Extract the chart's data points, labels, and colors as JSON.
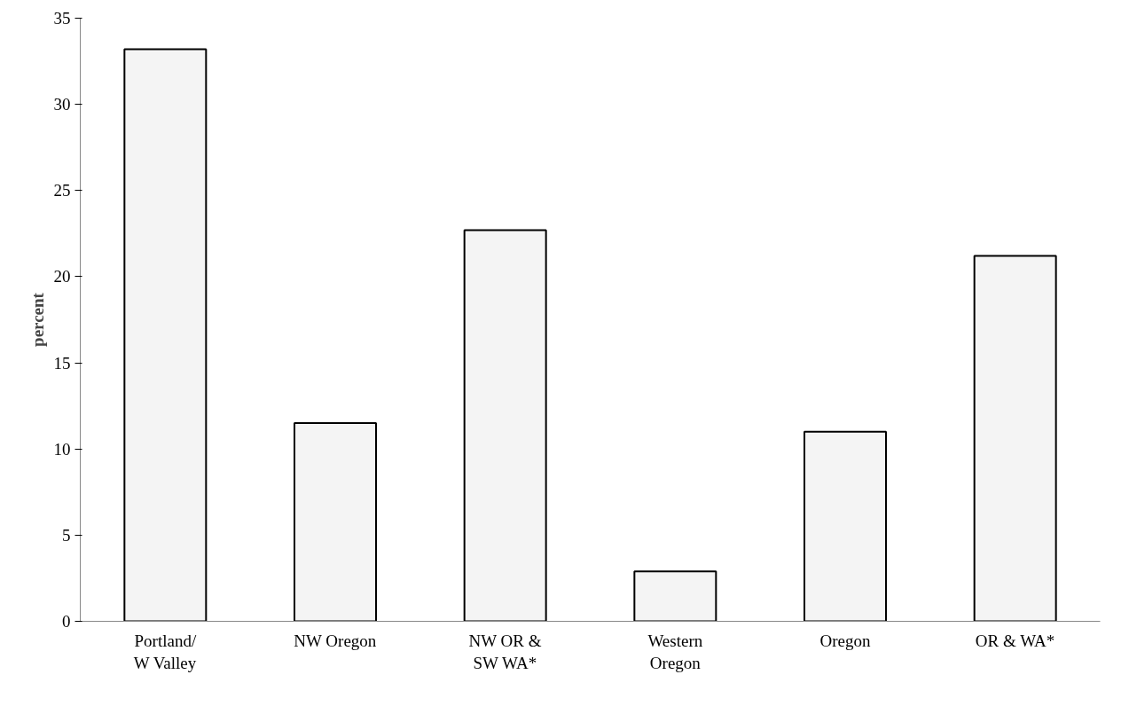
{
  "chart_data": {
    "type": "bar",
    "ylabel": "percent",
    "categories": [
      "Portland/\nW Valley",
      "NW Oregon",
      "NW OR &\nSW WA*",
      "Western\nOregon",
      "Oregon",
      "OR & WA*"
    ],
    "values": [
      33.2,
      11.5,
      22.7,
      2.9,
      11.0,
      21.2
    ],
    "color": "#f4f4f4",
    "ylim": [
      0,
      35
    ],
    "yticks": [
      0,
      5,
      10,
      15,
      20,
      25,
      30,
      35
    ],
    "grid": false
  }
}
